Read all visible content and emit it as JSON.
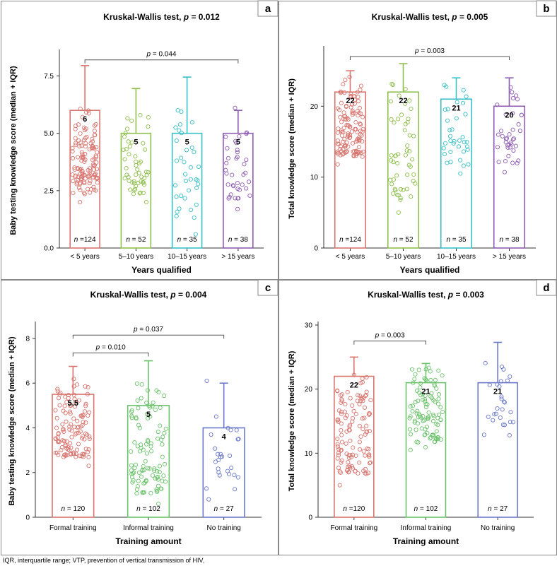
{
  "footnote": "IQR, interquartile range; VTP, prevention of vertical transmission of HIV.",
  "chart_data": [
    {
      "type": "bar",
      "panel_label": "a",
      "title": "Kruskal-Wallis test, p = 0.012",
      "xlabel": "Years qualified",
      "ylabel": "Baby testing knowledge score (median + IQR)",
      "ylim": [
        0,
        8.5
      ],
      "yticks": [
        "0.0",
        "2.5",
        "5.0",
        "7.5"
      ],
      "ytick_values": [
        0,
        2.5,
        5.0,
        7.5
      ],
      "categories": [
        "< 5 years",
        "5–10 years",
        "10–15 years",
        "> 15 years"
      ],
      "values": [
        6,
        5,
        5,
        5
      ],
      "value_labels": [
        "6",
        "5",
        "5",
        "5"
      ],
      "upper": [
        7.95,
        6.95,
        7.45,
        6.0
      ],
      "n_labels": [
        "n =124",
        "n = 52",
        "n = 35",
        "n = 38"
      ],
      "colors": [
        "#d9746e",
        "#8fbf4d",
        "#38c0c6",
        "#8e5db3"
      ],
      "comparisons": [
        {
          "from": 0,
          "to": 3,
          "label": "p = 0.044",
          "value": 8.2
        }
      ],
      "points": [
        {
          "min": 2.0,
          "max": 6.3,
          "n": 124
        },
        {
          "min": 2.0,
          "max": 6.3,
          "n": 52
        },
        {
          "min": 0.6,
          "max": 6.4,
          "n": 35
        },
        {
          "min": 1.7,
          "max": 6.3,
          "n": 38
        }
      ]
    },
    {
      "type": "bar",
      "panel_label": "b",
      "title": "Kruskal-Wallis test, p = 0.005",
      "xlabel": "Years qualified",
      "ylabel": "Total knowledge score (median + IQR)",
      "ylim": [
        0,
        28
      ],
      "yticks": [
        "0",
        "10",
        "20"
      ],
      "ytick_values": [
        0,
        10,
        20
      ],
      "categories": [
        "< 5 years",
        "5–10 years",
        "10–15 years",
        "> 15 years"
      ],
      "values": [
        22,
        22,
        21,
        20
      ],
      "value_labels": [
        "22",
        "22",
        "21",
        "20"
      ],
      "upper": [
        25,
        26,
        24,
        24
      ],
      "n_labels": [
        "n =124",
        "n = 52",
        "n = 35",
        "n = 38"
      ],
      "colors": [
        "#d9746e",
        "#8fbf4d",
        "#38c0c6",
        "#8e5db3"
      ],
      "comparisons": [
        {
          "from": 0,
          "to": 3,
          "label": "p = 0.003",
          "value": 27
        }
      ],
      "points": [
        {
          "min": 11.8,
          "max": 24.4,
          "n": 124
        },
        {
          "min": 5.0,
          "max": 24.4,
          "n": 52
        },
        {
          "min": 10.5,
          "max": 24.0,
          "n": 35
        },
        {
          "min": 10.7,
          "max": 23.3,
          "n": 38
        }
      ]
    },
    {
      "type": "bar",
      "panel_label": "c",
      "title": "Kruskal-Wallis test, p = 0.004",
      "xlabel": "Training amount",
      "ylabel": "Baby testing knowledge score (median + IQR)",
      "ylim": [
        0,
        8.6
      ],
      "yticks": [
        "0",
        "2",
        "4",
        "6",
        "8"
      ],
      "ytick_values": [
        0,
        2,
        4,
        6,
        8
      ],
      "categories": [
        "Formal training",
        "Informal training",
        "No training"
      ],
      "values": [
        5.5,
        5,
        4
      ],
      "value_labels": [
        "5.5",
        "5",
        "4"
      ],
      "upper": [
        6.75,
        7.0,
        6.0
      ],
      "n_labels": [
        "n = 120",
        "n = 102",
        "n = 27"
      ],
      "colors": [
        "#d9746e",
        "#6cc36c",
        "#6b79cc"
      ],
      "comparisons": [
        {
          "from": 0,
          "to": 1,
          "label": "p = 0.010",
          "value": 7.35
        },
        {
          "from": 0,
          "to": 2,
          "label": "p = 0.037",
          "value": 8.15
        }
      ],
      "points": [
        {
          "min": 2.3,
          "max": 6.3,
          "n": 120
        },
        {
          "min": 0.6,
          "max": 6.4,
          "n": 102
        },
        {
          "min": 0.8,
          "max": 6.3,
          "n": 27
        }
      ]
    },
    {
      "type": "bar",
      "panel_label": "d",
      "title": "Kruskal-Wallis test, p = 0.003",
      "xlabel": "Training amount",
      "ylabel": "Total knowledge score (median + IQR)",
      "ylim": [
        0,
        30
      ],
      "yticks": [
        "0",
        "10",
        "20",
        "30"
      ],
      "ytick_values": [
        0,
        10,
        20,
        30
      ],
      "categories": [
        "Formal training",
        "Informal training",
        "No training"
      ],
      "values": [
        22,
        21,
        21
      ],
      "value_labels": [
        "22",
        "21",
        "21"
      ],
      "upper": [
        25,
        24,
        27.3
      ],
      "n_labels": [
        "n =120",
        "n = 102",
        "n = 27"
      ],
      "colors": [
        "#d9746e",
        "#6cc36c",
        "#6b79cc"
      ],
      "comparisons": [
        {
          "from": 0,
          "to": 1,
          "label": "p = 0.003",
          "value": 27.5
        }
      ],
      "points": [
        {
          "min": 5.0,
          "max": 24.4,
          "n": 120
        },
        {
          "min": 10.5,
          "max": 24.2,
          "n": 102
        },
        {
          "min": 12.8,
          "max": 24.3,
          "n": 27
        }
      ]
    }
  ]
}
